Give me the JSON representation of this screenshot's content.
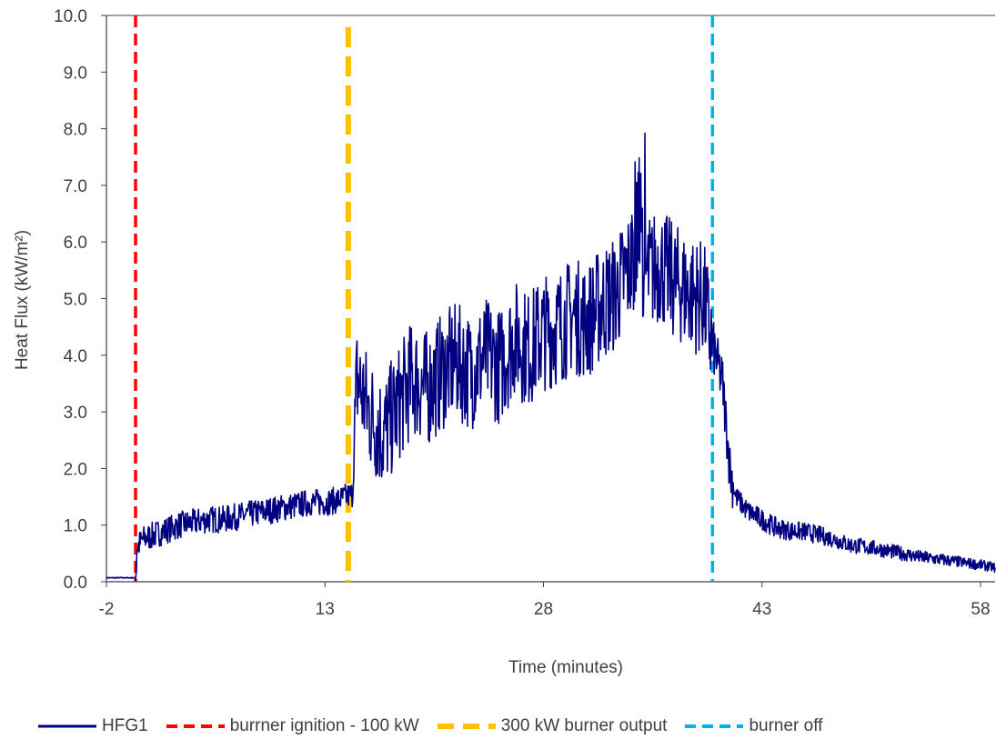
{
  "chart_data": {
    "type": "line",
    "title": "",
    "xlabel": "Time (minutes)",
    "ylabel": "Heat Flux (kW/m²)",
    "xlim": [
      -2,
      59
    ],
    "ylim": [
      0,
      10
    ],
    "x_ticks": [
      "-2",
      "13",
      "28",
      "43",
      "58"
    ],
    "y_ticks": [
      "0.0",
      "1.0",
      "2.0",
      "3.0",
      "4.0",
      "5.0",
      "6.0",
      "7.0",
      "8.0",
      "9.0",
      "10.0"
    ],
    "grid": false,
    "legend_position": "bottom",
    "series": [
      {
        "name": "HFG1",
        "color": "#000080",
        "style": "solid",
        "points": [
          [
            -2,
            0.07
          ],
          [
            0,
            0.07
          ],
          [
            0.1,
            0.6
          ],
          [
            0.5,
            0.75
          ],
          [
            1,
            0.8
          ],
          [
            2,
            0.9
          ],
          [
            3,
            1.0
          ],
          [
            4,
            1.05
          ],
          [
            5,
            1.1
          ],
          [
            6,
            1.1
          ],
          [
            7,
            1.15
          ],
          [
            8,
            1.2
          ],
          [
            9,
            1.25
          ],
          [
            10,
            1.3
          ],
          [
            11,
            1.35
          ],
          [
            12,
            1.4
          ],
          [
            13,
            1.4
          ],
          [
            14,
            1.45
          ],
          [
            14.9,
            1.55
          ],
          [
            15.2,
            3.6
          ],
          [
            16,
            3.0
          ],
          [
            17,
            2.6
          ],
          [
            18,
            3.1
          ],
          [
            19,
            3.6
          ],
          [
            20,
            3.4
          ],
          [
            21,
            3.7
          ],
          [
            22,
            3.9
          ],
          [
            23,
            3.7
          ],
          [
            24,
            4.0
          ],
          [
            25,
            3.8
          ],
          [
            26,
            4.3
          ],
          [
            27,
            4.1
          ],
          [
            28,
            4.4
          ],
          [
            29,
            4.5
          ],
          [
            30,
            4.7
          ],
          [
            31,
            4.6
          ],
          [
            32,
            4.9
          ],
          [
            33,
            5.1
          ],
          [
            34,
            5.6
          ],
          [
            34.5,
            6.3
          ],
          [
            35,
            5.4
          ],
          [
            36,
            5.6
          ],
          [
            37,
            5.3
          ],
          [
            38,
            5.1
          ],
          [
            39,
            5.0
          ],
          [
            39.5,
            4.3
          ],
          [
            40.3,
            3.5
          ],
          [
            40.8,
            2.0
          ],
          [
            41.2,
            1.5
          ],
          [
            42,
            1.25
          ],
          [
            43,
            1.1
          ],
          [
            44,
            0.95
          ],
          [
            45,
            0.9
          ],
          [
            46,
            0.88
          ],
          [
            47,
            0.82
          ],
          [
            48,
            0.75
          ],
          [
            49,
            0.65
          ],
          [
            50,
            0.62
          ],
          [
            51,
            0.58
          ],
          [
            52,
            0.53
          ],
          [
            53,
            0.48
          ],
          [
            54,
            0.43
          ],
          [
            55,
            0.4
          ],
          [
            56,
            0.37
          ],
          [
            57,
            0.33
          ],
          [
            58,
            0.3
          ],
          [
            59,
            0.25
          ]
        ]
      },
      {
        "name": "burrner ignition - 100 kW",
        "color": "#ff0000",
        "style": "dashed",
        "x": 0
      },
      {
        "name": "300 kW burner output",
        "color": "#ffc000",
        "style": "dashed",
        "x": 14.6
      },
      {
        "name": "burner off",
        "color": "#00b0f0",
        "style": "dashed",
        "x": 39.6
      }
    ]
  }
}
